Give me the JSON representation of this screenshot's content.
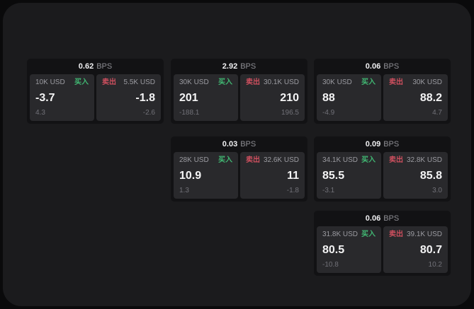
{
  "labels": {
    "bps_unit": "BPS",
    "buy": "买入",
    "sell": "卖出"
  },
  "colors": {
    "background": "#0a0a0b",
    "panel": "#1b1b1d",
    "card": "#121214",
    "tile": "#29292c",
    "buy_green": "#41b873",
    "sell_red": "#cd4f5e",
    "primary_text": "#f4f4f5",
    "secondary_text": "#9b9ba1",
    "muted_text": "#717178"
  },
  "cards": [
    {
      "bps": "0.62",
      "buy": {
        "amount": "10K USD",
        "price": "-3.7",
        "delta": "4.3"
      },
      "sell": {
        "amount": "5.5K USD",
        "price": "-1.8",
        "delta": "-2.6"
      }
    },
    {
      "bps": "2.92",
      "buy": {
        "amount": "30K USD",
        "price": "201",
        "delta": "-188.1"
      },
      "sell": {
        "amount": "30.1K USD",
        "price": "210",
        "delta": "196.5"
      }
    },
    {
      "bps": "0.06",
      "buy": {
        "amount": "30K USD",
        "price": "88",
        "delta": "-4.9"
      },
      "sell": {
        "amount": "30K USD",
        "price": "88.2",
        "delta": "4.7"
      }
    },
    {
      "bps": "0.03",
      "buy": {
        "amount": "28K USD",
        "price": "10.9",
        "delta": "1.3"
      },
      "sell": {
        "amount": "32.6K USD",
        "price": "11",
        "delta": "-1.8"
      }
    },
    {
      "bps": "0.09",
      "buy": {
        "amount": "34.1K USD",
        "price": "85.5",
        "delta": "-3.1"
      },
      "sell": {
        "amount": "32.8K USD",
        "price": "85.8",
        "delta": "3.0"
      }
    },
    {
      "bps": "0.06",
      "buy": {
        "amount": "31.8K USD",
        "price": "80.5",
        "delta": "-10.8"
      },
      "sell": {
        "amount": "39.1K USD",
        "price": "80.7",
        "delta": "10.2"
      }
    }
  ]
}
